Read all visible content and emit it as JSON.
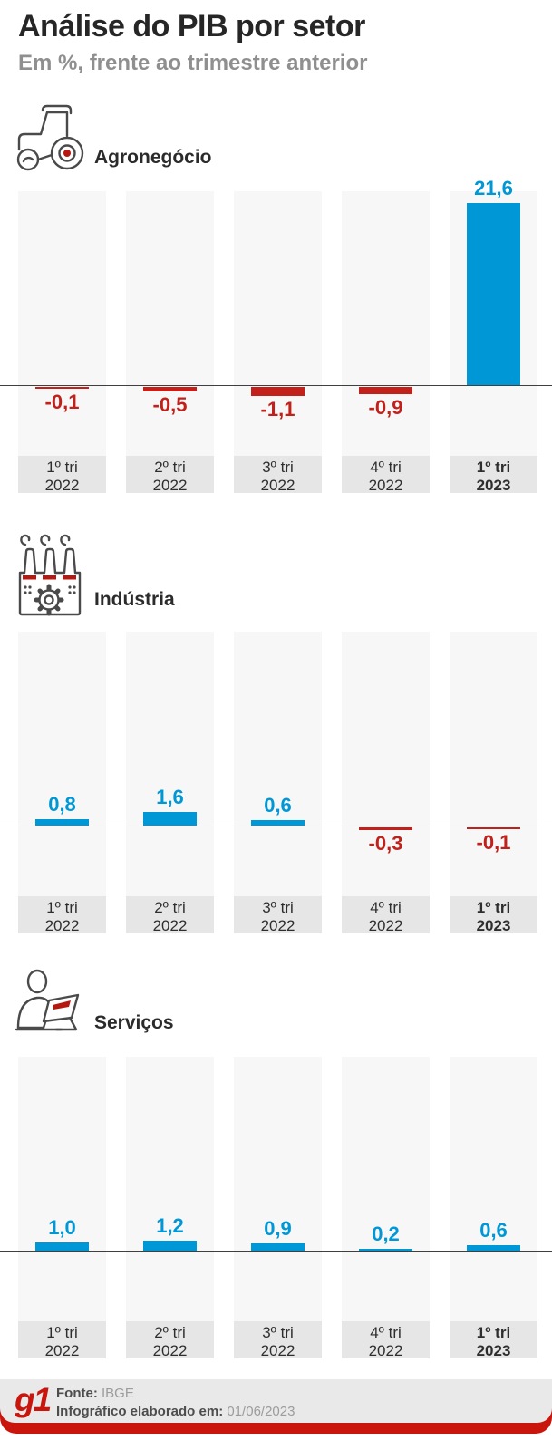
{
  "header": {
    "title": "Análise do PIB por setor",
    "subtitle": "Em %, frente ao trimestre anterior"
  },
  "chart_data": [
    {
      "type": "bar",
      "title": "Agronegócio",
      "icon": "tractor-icon",
      "unit": "%, frente ao trimestre anterior",
      "categories": [
        "1º tri 2022",
        "2º tri 2022",
        "3º tri 2022",
        "4º tri 2022",
        "1º tri 2023"
      ],
      "values": [
        -0.1,
        -0.5,
        -1.1,
        -0.9,
        21.6
      ],
      "value_labels": [
        "-0,1",
        "-0,5",
        "-1,1",
        "-0,9",
        "21,6"
      ],
      "ylim": [
        -2,
        22
      ],
      "grid": false,
      "legend": "none"
    },
    {
      "type": "bar",
      "title": "Indústria",
      "icon": "factory-icon",
      "unit": "%, frente ao trimestre anterior",
      "categories": [
        "1º tri 2022",
        "2º tri 2022",
        "3º tri 2022",
        "4º tri 2022",
        "1º tri 2023"
      ],
      "values": [
        0.8,
        1.6,
        0.6,
        -0.3,
        -0.1
      ],
      "value_labels": [
        "0,8",
        "1,6",
        "0,6",
        "-0,3",
        "-0,1"
      ],
      "ylim": [
        -1,
        2
      ],
      "grid": false,
      "legend": "none"
    },
    {
      "type": "bar",
      "title": "Serviços",
      "icon": "person-laptop-icon",
      "unit": "%, frente ao trimestre anterior",
      "categories": [
        "1º tri 2022",
        "2º tri 2022",
        "3º tri 2022",
        "4º tri 2022",
        "1º tri 2023"
      ],
      "values": [
        1.0,
        1.2,
        0.9,
        0.2,
        0.6
      ],
      "value_labels": [
        "1,0",
        "1,2",
        "0,9",
        "0,2",
        "0,6"
      ],
      "ylim": [
        -1,
        2
      ],
      "grid": false,
      "legend": "none"
    }
  ],
  "colors": {
    "positive": "#0097d6",
    "negative": "#c1211a",
    "axis_line": "#3f3f3f",
    "column_bg": "#f7f7f7",
    "xlabel_bg": "#e6e6e6",
    "footer_bg": "#e9e9e9",
    "brand_red": "#c9150c",
    "icon_accent_red": "#b51810"
  },
  "footer": {
    "logo": "g1",
    "source_label": "Fonte:",
    "source_value": "IBGE",
    "date_label": "Infográfico elaborado em:",
    "date_value": "01/06/2023"
  }
}
